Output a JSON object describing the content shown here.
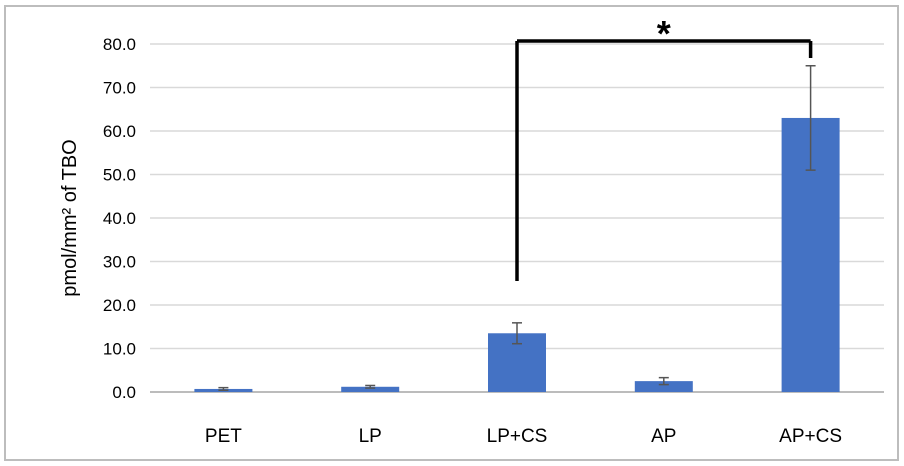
{
  "chart_data": {
    "type": "bar",
    "title": "",
    "xlabel": "",
    "ylabel": "pmol/mm² of TBO",
    "categories": [
      "PET",
      "LP",
      "LP+CS",
      "AP",
      "AP+CS"
    ],
    "values": [
      0.7,
      1.2,
      13.5,
      2.5,
      63.0
    ],
    "errors": [
      0.3,
      0.3,
      2.4,
      0.8,
      12.0
    ],
    "ylim": [
      0,
      80
    ],
    "yticks": [
      "0.0",
      "10.0",
      "20.0",
      "30.0",
      "40.0",
      "50.0",
      "60.0",
      "70.0",
      "80.0"
    ],
    "grid": true,
    "bar_color": "#4472C4",
    "significance": {
      "from": "LP+CS",
      "to": "AP+CS",
      "label": "*"
    }
  }
}
